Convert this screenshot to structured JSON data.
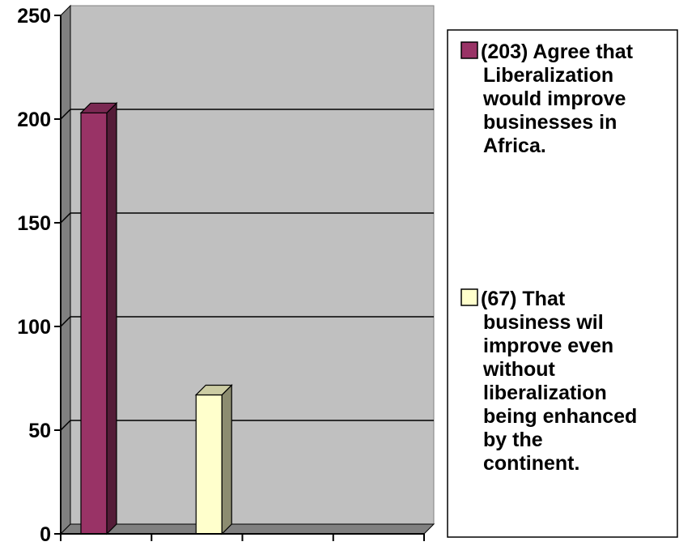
{
  "chart_data": {
    "type": "bar",
    "title": "",
    "xlabel": "",
    "ylabel": "",
    "ylim": [
      0,
      250
    ],
    "yticks": [
      0,
      50,
      100,
      150,
      200,
      250
    ],
    "grid": true,
    "legend_position": "right",
    "series": [
      {
        "name": "(203) Agree that Liberalization would improve businesses in Africa.",
        "legend_lines": [
          "(203) Agree that",
          "Liberalization",
          "would improve",
          "businesses in",
          "Africa."
        ],
        "value": 203,
        "category_index": 0,
        "color": "#993366"
      },
      {
        "name": "(67) That business wil improve even without liberalization being enhanced by the continent.",
        "legend_lines": [
          "(67) That",
          "business wil",
          "improve even",
          "without",
          "liberalization",
          "being enhanced",
          "by the",
          "continent."
        ],
        "value": 67,
        "category_index": 1,
        "color": "#FFFFCC"
      }
    ],
    "category_count": 4,
    "colors": {
      "plot_background": "#C0C0C0",
      "wall_side": "#808080",
      "gridline": "#000000"
    }
  }
}
